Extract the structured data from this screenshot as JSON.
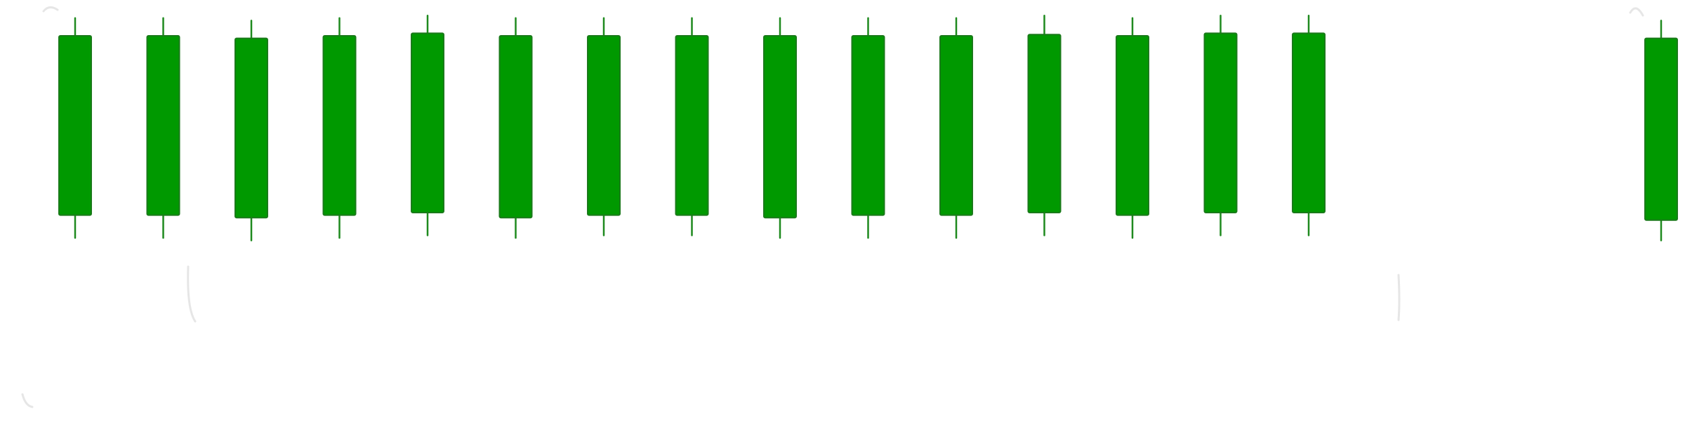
{
  "chart_data": {
    "type": "candlestick",
    "title": "",
    "xlabel": "",
    "ylabel": "",
    "grid": false,
    "legend": "none",
    "ylim": [
      0,
      100
    ],
    "xlim": [
      0,
      23
    ],
    "colors": {
      "bullish_body": "#009900",
      "bullish_border": "#1a7a1a",
      "wick": "#1f8a1f",
      "background": "#ffffff",
      "ghost_strokes": "#e6e6e6"
    },
    "candles": [
      {
        "x": 1,
        "open": 19,
        "high": 97,
        "low": 10,
        "close": 90
      },
      {
        "x": 2,
        "open": 19,
        "high": 97,
        "low": 10,
        "close": 90
      },
      {
        "x": 3,
        "open": 18,
        "high": 96,
        "low": 9,
        "close": 89
      },
      {
        "x": 4,
        "open": 19,
        "high": 97,
        "low": 10,
        "close": 90
      },
      {
        "x": 5,
        "open": 20,
        "high": 98,
        "low": 11,
        "close": 91
      },
      {
        "x": 6,
        "open": 18,
        "high": 97,
        "low": 10,
        "close": 90
      },
      {
        "x": 7,
        "open": 19,
        "high": 97,
        "low": 11,
        "close": 90
      },
      {
        "x": 8,
        "open": 19,
        "high": 97,
        "low": 11,
        "close": 90
      },
      {
        "x": 9,
        "open": 18,
        "high": 97,
        "low": 10,
        "close": 90
      },
      {
        "x": 10,
        "open": 19,
        "high": 97,
        "low": 10,
        "close": 90
      },
      {
        "x": 11,
        "open": 19,
        "high": 97,
        "low": 10,
        "close": 90
      },
      {
        "x": 12,
        "open": 20,
        "high": 98,
        "low": 11,
        "close": 90.5
      },
      {
        "x": 13,
        "open": 19,
        "high": 97,
        "low": 10,
        "close": 90
      },
      {
        "x": 14,
        "open": 20,
        "high": 98,
        "low": 11,
        "close": 91
      },
      {
        "x": 15,
        "open": 20,
        "high": 98,
        "low": 11,
        "close": 91
      },
      {
        "x": 19,
        "open": 17,
        "high": 96,
        "low": 9,
        "close": 89
      }
    ]
  }
}
